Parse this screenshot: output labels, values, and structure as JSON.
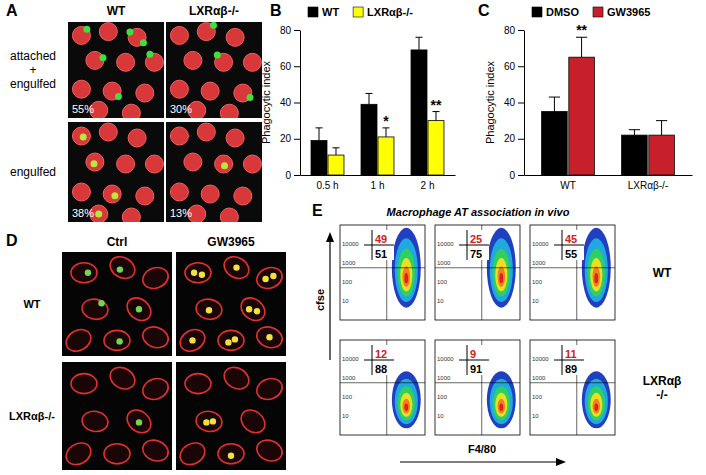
{
  "chart_data": [
    {
      "type": "bar",
      "title": "B",
      "y_label": "Phagocytic index",
      "categories": [
        "0.5 h",
        "1 h",
        "2 h"
      ],
      "series": [
        {
          "name": "WT",
          "color": "#000000",
          "values": [
            19,
            39,
            69
          ],
          "errors": [
            7,
            6,
            7
          ]
        },
        {
          "name": "LXRαβ-/-",
          "color": "#ffff00",
          "values": [
            11,
            21,
            30
          ],
          "errors": [
            4,
            5,
            5
          ]
        }
      ],
      "ylim": [
        0,
        80
      ],
      "yticks": [
        0,
        20,
        40,
        60,
        80
      ],
      "legend": "top",
      "annotations": [
        {
          "text": "*",
          "x": "1 h",
          "series": "LXRαβ-/-"
        },
        {
          "text": "**",
          "x": "2 h",
          "series": "LXRαβ-/-"
        }
      ]
    },
    {
      "type": "bar",
      "title": "C",
      "y_label": "Phagocytic index",
      "categories": [
        "WT",
        "LXRαβ-/-"
      ],
      "series": [
        {
          "name": "DMSO",
          "color": "#000000",
          "values": [
            35,
            22
          ],
          "errors": [
            8,
            3
          ]
        },
        {
          "name": "GW3965",
          "color": "#c8202a",
          "values": [
            65,
            22
          ],
          "errors": [
            11,
            8
          ]
        }
      ],
      "ylim": [
        0,
        80
      ],
      "yticks": [
        0,
        20,
        40,
        60,
        80
      ],
      "legend": "top",
      "annotations": [
        {
          "text": "**",
          "x": "WT",
          "series": "GW3965"
        }
      ]
    }
  ],
  "panels": {
    "A": {
      "letter": "A",
      "columns": [
        "WT",
        "LXRαβ-/-"
      ],
      "rows": [
        [
          "attached",
          "+",
          "engulfed"
        ],
        [
          "engulfed"
        ]
      ],
      "percentages": [
        [
          "55%",
          "30%"
        ],
        [
          "38%",
          "13%"
        ]
      ]
    },
    "D": {
      "letter": "D",
      "columns": [
        "Ctrl",
        "GW3965"
      ],
      "rows": [
        "WT",
        "LXRαβ-/-"
      ]
    },
    "E": {
      "letter": "E",
      "title": "Macrophage AT association in vivo",
      "y_label": "cfse",
      "x_label": "F4/80",
      "rows": [
        [
          "WT"
        ],
        [
          "LXRαβ",
          "-/-"
        ]
      ],
      "y_ticks": [
        "10",
        "100",
        "1000",
        "10000"
      ],
      "quadrants": [
        [
          [
            49,
            51
          ],
          [
            25,
            75
          ],
          [
            45,
            55
          ]
        ],
        [
          [
            12,
            88
          ],
          [
            9,
            91
          ],
          [
            11,
            89
          ]
        ]
      ]
    }
  }
}
